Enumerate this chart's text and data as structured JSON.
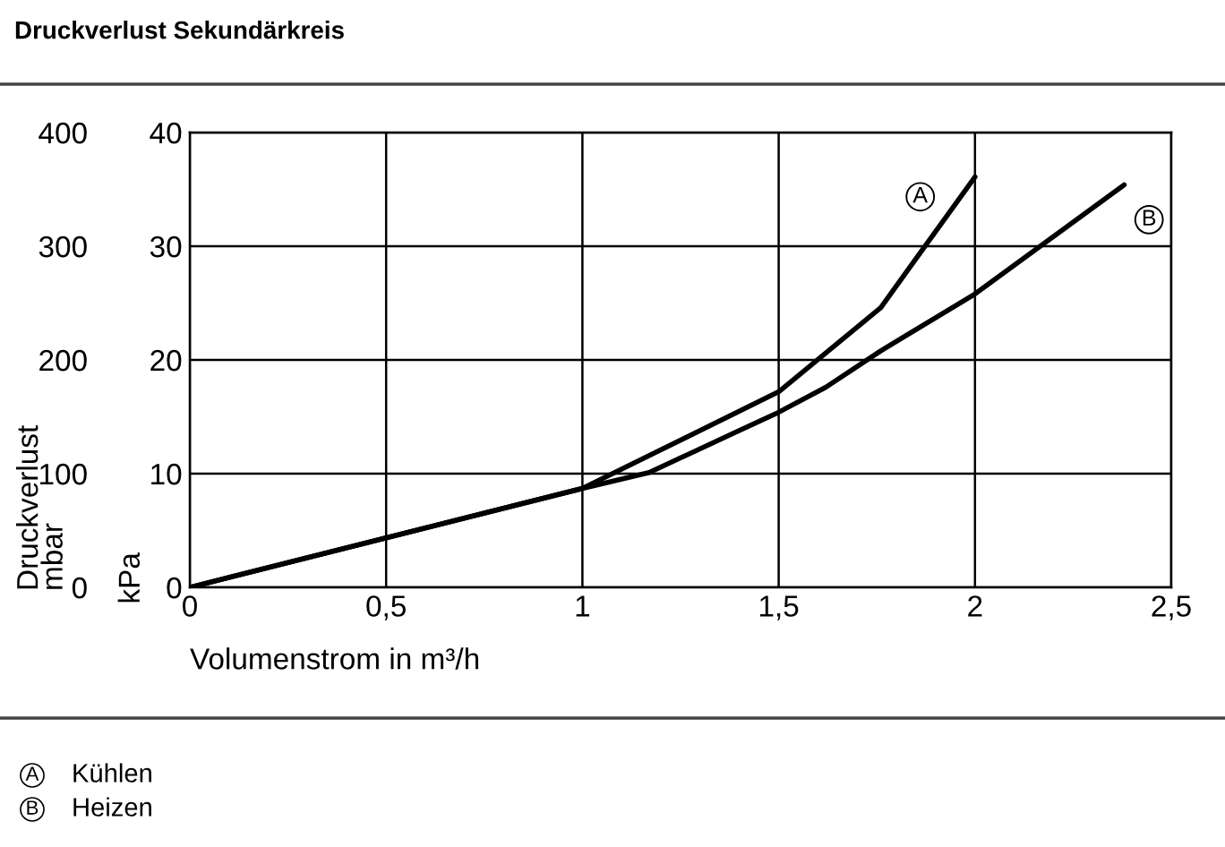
{
  "chart_data": {
    "type": "line",
    "title": "Druckverlust Sekundärkreis",
    "xlabel": "Volumenstrom in m³/h",
    "ylabel": "kPa",
    "y2label": "Druckverlust\nmbar",
    "series": [
      {
        "name": "A",
        "color": "#000000",
        "x": [
          0,
          1.0,
          1.5,
          1.76,
          2.0
        ],
        "values": [
          0,
          8.7,
          17.2,
          24.6,
          36.1
        ]
      },
      {
        "name": "B",
        "color": "#000000",
        "x": [
          0,
          1.0,
          1.17,
          1.4,
          1.5,
          1.62,
          1.76,
          2.0,
          2.38
        ],
        "values": [
          0,
          8.7,
          10.1,
          13.8,
          15.4,
          17.6,
          20.8,
          25.8,
          35.4
        ]
      }
    ],
    "xlim": [
      0,
      2.5
    ],
    "xticks": [
      0,
      {
        "value": 0.5,
        "label": "0,5"
      },
      1,
      {
        "value": 1.5,
        "label": "1,5"
      },
      2,
      {
        "value": 2.5,
        "label": "2,5"
      }
    ],
    "ylim": [
      0,
      40
    ],
    "yticks": [
      0,
      10,
      20,
      30,
      40
    ],
    "y2lim": [
      0,
      400
    ],
    "y2ticks": [
      0,
      100,
      200,
      300,
      400
    ],
    "grid": true,
    "line_style": "solid",
    "marker": "none",
    "annotations": [
      "Kühlen",
      "Heizen"
    ]
  }
}
